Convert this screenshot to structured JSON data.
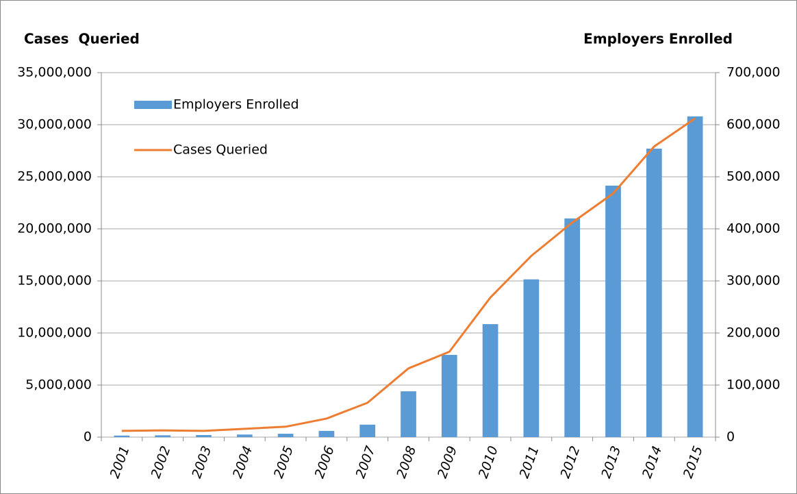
{
  "chart_data": {
    "type": "bar-line",
    "y_title": "Cases  Queried",
    "y2_title": "Employers Enrolled",
    "categories": [
      "2001",
      "2002",
      "2003",
      "2004",
      "2005",
      "2006",
      "2007",
      "2008",
      "2009",
      "2010",
      "2011",
      "2012",
      "2013",
      "2014",
      "2015"
    ],
    "series": [
      {
        "name": "Employers Enrolled",
        "type": "bar",
        "axis": "y2",
        "color": "#5b9bd5",
        "values": [
          3000,
          3500,
          4000,
          5000,
          6500,
          12000,
          24000,
          88000,
          158000,
          217000,
          303000,
          420000,
          483000,
          554000,
          616000
        ]
      },
      {
        "name": "Cases Queried",
        "type": "line",
        "axis": "y",
        "color": "#ed7d31",
        "values": [
          600000,
          650000,
          600000,
          800000,
          1000000,
          1780000,
          3300000,
          6600000,
          8200000,
          13400000,
          17400000,
          20600000,
          23400000,
          27900000,
          30600000
        ]
      }
    ],
    "ylim": [
      0,
      35000000
    ],
    "yticks": [
      0,
      {
        "value": 5000000,
        "label": "5,000,000"
      },
      {
        "value": 10000000,
        "label": "10,000,000"
      },
      {
        "value": 15000000,
        "label": "15,000,000"
      },
      {
        "value": 20000000,
        "label": "20,000,000"
      },
      {
        "value": 25000000,
        "label": "25,000,000"
      },
      {
        "value": 30000000,
        "label": "30,000,000"
      },
      {
        "value": 35000000,
        "label": "35,000,000"
      }
    ],
    "y2lim": [
      0,
      700000
    ],
    "y2ticks": [
      0,
      {
        "value": 100000,
        "label": "100,000"
      },
      {
        "value": 200000,
        "label": "200,000"
      },
      {
        "value": 300000,
        "label": "300,000"
      },
      {
        "value": 400000,
        "label": "400,000"
      },
      {
        "value": 500000,
        "label": "500,000"
      },
      {
        "value": 600000,
        "label": "600,000"
      },
      {
        "value": 700000,
        "label": "700,000"
      }
    ],
    "grid": true,
    "legend": "top-left"
  }
}
